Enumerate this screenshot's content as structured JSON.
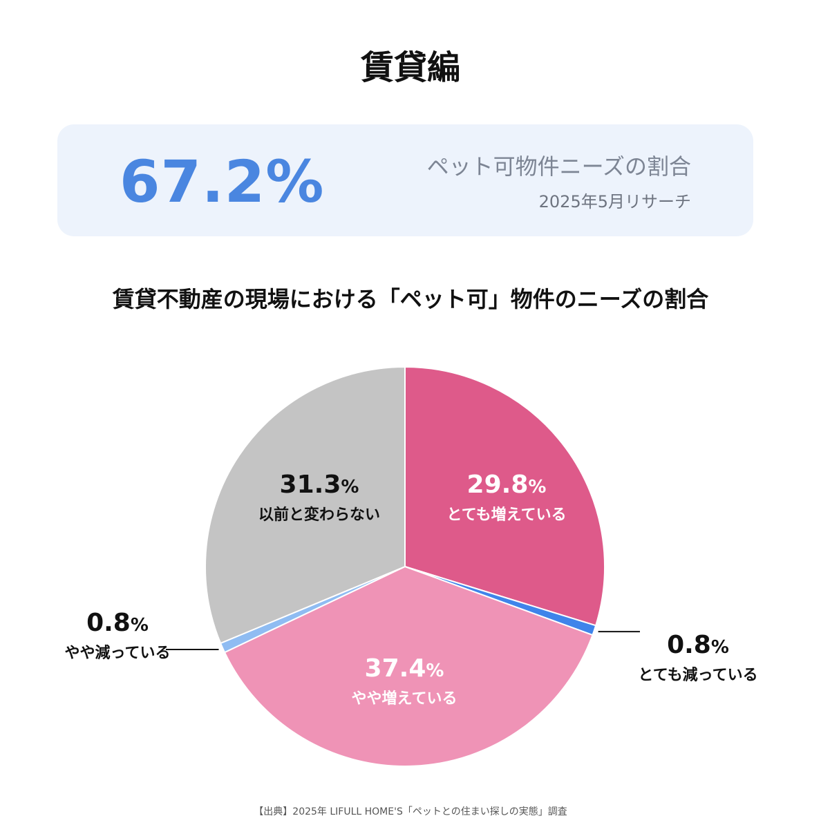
{
  "page": {
    "title": "賃貸編",
    "source_note": "【出典】2025年 LIFULL HOME'S「ペットとの住まい探しの実態」調査"
  },
  "summary": {
    "value": "67.2%",
    "label": "ペット可物件ニーズの割合",
    "date": "2025年5月リサーチ",
    "accent_color": "#4a86e0",
    "background_color": "#edf3fc"
  },
  "chart_data": {
    "type": "pie",
    "title": "賃貸不動産の現場における「ペット可」物件のニーズの割合",
    "unit": "%",
    "slices": [
      {
        "label": "とても増えている",
        "value": 29.8,
        "value_text": "29.8",
        "color": "#de5a8a"
      },
      {
        "label": "とても減っている",
        "value": 0.8,
        "value_text": "0.8",
        "color": "#3f84ea"
      },
      {
        "label": "やや増えている",
        "value": 37.4,
        "value_text": "37.4",
        "color": "#ef93b6"
      },
      {
        "label": "やや減っている",
        "value": 0.8,
        "value_text": "0.8",
        "color": "#8fbcf2"
      },
      {
        "label": "以前と変わらない",
        "value": 31.3,
        "value_text": "31.3",
        "color": "#c4c4c4"
      }
    ]
  }
}
